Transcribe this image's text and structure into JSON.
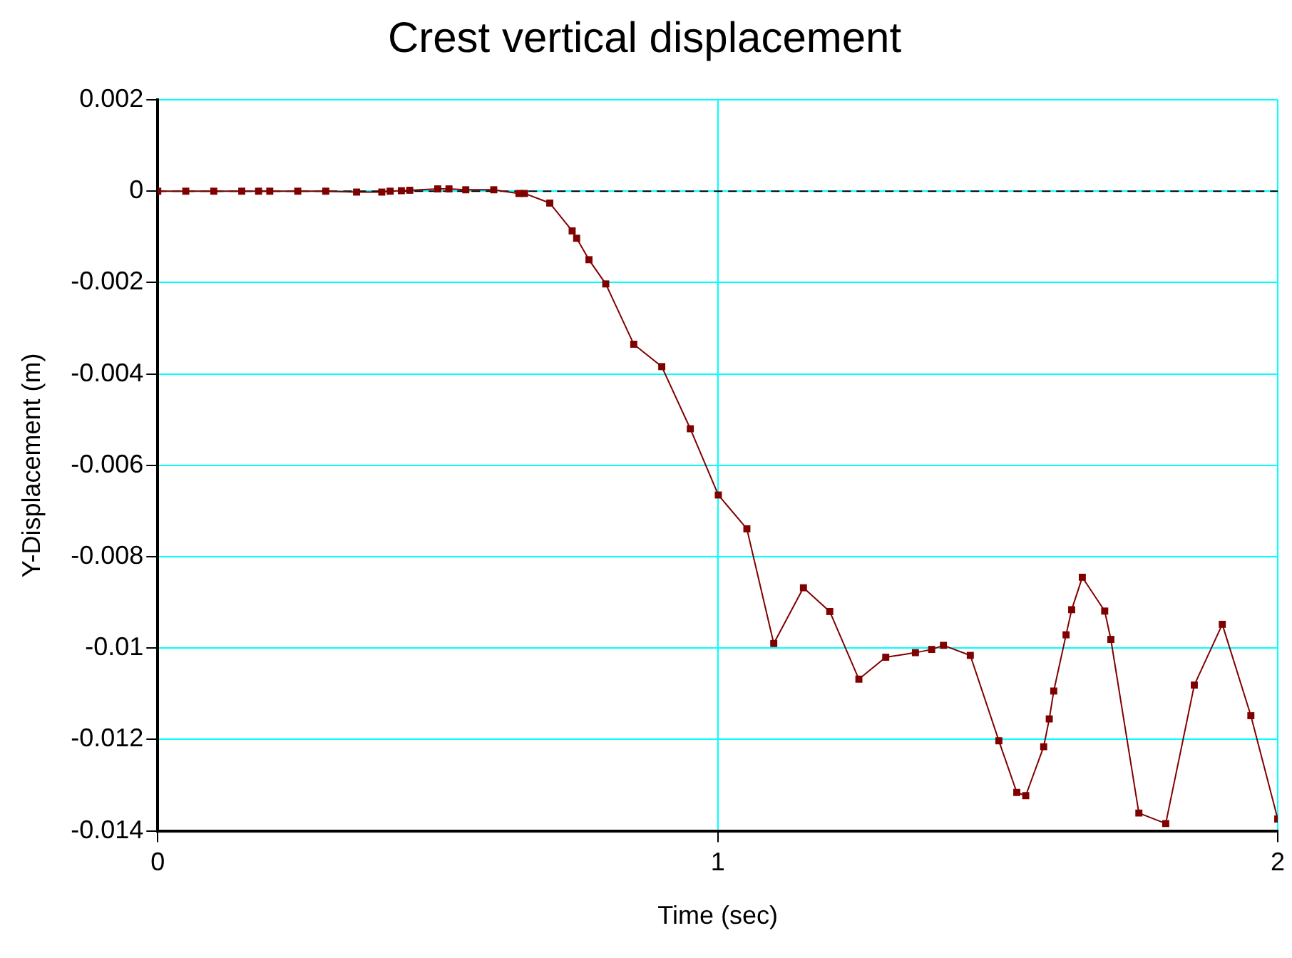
{
  "chart_data": {
    "type": "line",
    "title": "Crest vertical displacement",
    "xlabel": "Time (sec)",
    "ylabel": "Y-Displacement (m)",
    "x": [
      0,
      0.05,
      0.1,
      0.15,
      0.18,
      0.2,
      0.25,
      0.3,
      0.355,
      0.4,
      0.415,
      0.435,
      0.45,
      0.5,
      0.52,
      0.55,
      0.6,
      0.645,
      0.655,
      0.7,
      0.74,
      0.748,
      0.77,
      0.8,
      0.85,
      0.9,
      0.951,
      1.001,
      1.052,
      1.1,
      1.153,
      1.2,
      1.252,
      1.3,
      1.353,
      1.382,
      1.403,
      1.451,
      1.502,
      1.534,
      1.55,
      1.582,
      1.592,
      1.6,
      1.622,
      1.632,
      1.651,
      1.691,
      1.702,
      1.752,
      1.8,
      1.851,
      1.901,
      1.952,
      2.0
    ],
    "series": [
      {
        "color": "#800000",
        "values": [
          0,
          0,
          0,
          0,
          0,
          0,
          0,
          0,
          -2e-05,
          -2e-05,
          0,
          1e-05,
          2e-05,
          5e-05,
          5e-05,
          3e-05,
          3e-05,
          -5e-05,
          -5e-05,
          -0.00026,
          -0.00087,
          -0.00103,
          -0.0015,
          -0.00203,
          -0.00335,
          -0.00384,
          -0.0052,
          -0.00665,
          -0.00739,
          -0.0099,
          -0.00868,
          -0.0092,
          -0.01068,
          -0.0102,
          -0.0101,
          -0.01003,
          -0.00994,
          -0.01016,
          -0.01203,
          -0.01316,
          -0.01323,
          -0.01216,
          -0.01155,
          -0.01094,
          -0.00971,
          -0.00916,
          -0.00845,
          -0.00919,
          -0.00981,
          -0.01361,
          -0.01384,
          -0.01081,
          -0.00948,
          -0.01148,
          -0.01374
        ]
      }
    ],
    "xlim": [
      0,
      2
    ],
    "xticks": [
      0,
      1,
      2
    ],
    "ylim": [
      -0.014,
      0.002
    ],
    "yticks": [
      0.002,
      0,
      -0.002,
      -0.004,
      -0.006,
      -0.008,
      -0.01,
      -0.012,
      -0.014
    ],
    "grid": true,
    "marker": "square",
    "line_style": "solid",
    "ref_lines": [
      {
        "axis": "y",
        "value": 0,
        "color": "#000000",
        "line_style": "dashed"
      }
    ]
  }
}
